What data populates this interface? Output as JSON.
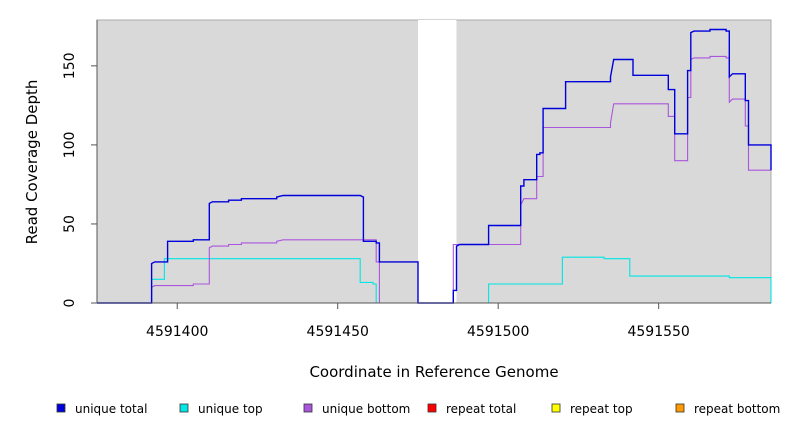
{
  "chart_data": {
    "type": "line",
    "title": "",
    "xlabel": "Coordinate in Reference Genome",
    "ylabel": "Read Coverage Depth",
    "xlim": [
      4591375,
      4591585
    ],
    "ylim": [
      0,
      179
    ],
    "x_ticks": [
      {
        "value": 4591400,
        "label": "4591400"
      },
      {
        "value": 4591450,
        "label": "4591450"
      },
      {
        "value": 4591500,
        "label": "4591500"
      },
      {
        "value": 4591550,
        "label": "4591550"
      }
    ],
    "y_ticks": [
      {
        "value": 0,
        "label": "0"
      },
      {
        "value": 50,
        "label": "50"
      },
      {
        "value": 100,
        "label": "100"
      },
      {
        "value": 150,
        "label": "150"
      }
    ],
    "grid": false,
    "background": "#d9d9d9",
    "gap_region": {
      "x_start": 4591475,
      "x_end": 4591487,
      "color": "#ffffff"
    },
    "legend_position": "bottom",
    "series": [
      {
        "name": "unique total",
        "color": "#0000dd",
        "step": true,
        "points": [
          [
            4591375,
            0
          ],
          [
            4591392,
            0
          ],
          [
            4591392,
            25
          ],
          [
            4591393,
            26
          ],
          [
            4591397,
            26
          ],
          [
            4591397,
            39
          ],
          [
            4591405,
            39
          ],
          [
            4591405,
            40
          ],
          [
            4591410,
            40
          ],
          [
            4591410,
            63
          ],
          [
            4591411,
            64
          ],
          [
            4591416,
            64
          ],
          [
            4591416,
            65
          ],
          [
            4591420,
            65
          ],
          [
            4591420,
            66
          ],
          [
            4591431,
            66
          ],
          [
            4591431,
            67
          ],
          [
            4591433,
            68
          ],
          [
            4591457,
            68
          ],
          [
            4591458,
            67
          ],
          [
            4591458,
            39
          ],
          [
            4591462,
            39
          ],
          [
            4591462,
            38
          ],
          [
            4591463,
            38
          ],
          [
            4591463,
            26
          ],
          [
            4591475,
            26
          ],
          [
            4591475,
            0
          ],
          [
            4591486,
            0
          ],
          [
            4591486,
            8
          ],
          [
            4591487,
            8
          ],
          [
            4591487,
            36
          ],
          [
            4591488,
            37
          ],
          [
            4591497,
            37
          ],
          [
            4591497,
            49
          ],
          [
            4591507,
            49
          ],
          [
            4591507,
            74
          ],
          [
            4591508,
            74
          ],
          [
            4591508,
            78
          ],
          [
            4591512,
            78
          ],
          [
            4591512,
            94
          ],
          [
            4591513,
            94
          ],
          [
            4591513,
            95
          ],
          [
            4591514,
            95
          ],
          [
            4591514,
            123
          ],
          [
            4591521,
            123
          ],
          [
            4591521,
            140
          ],
          [
            4591535,
            140
          ],
          [
            4591535,
            143
          ],
          [
            4591536,
            154
          ],
          [
            4591542,
            154
          ],
          [
            4591542,
            144
          ],
          [
            4591553,
            144
          ],
          [
            4591553,
            135
          ],
          [
            4591555,
            135
          ],
          [
            4591555,
            107
          ],
          [
            4591559,
            107
          ],
          [
            4591559,
            147
          ],
          [
            4591560,
            147
          ],
          [
            4591560,
            171
          ],
          [
            4591561,
            172
          ],
          [
            4591566,
            172
          ],
          [
            4591566,
            173
          ],
          [
            4591571,
            173
          ],
          [
            4591571,
            172
          ],
          [
            4591572,
            172
          ],
          [
            4591572,
            143
          ],
          [
            4591573,
            145
          ],
          [
            4591577,
            145
          ],
          [
            4591577,
            128
          ],
          [
            4591578,
            128
          ],
          [
            4591578,
            100
          ],
          [
            4591585,
            100
          ],
          [
            4591585,
            84
          ],
          [
            4591586,
            84
          ]
        ]
      },
      {
        "name": "unique top",
        "color": "#00e5e5",
        "step": true,
        "points": [
          [
            4591375,
            0
          ],
          [
            4591392,
            0
          ],
          [
            4591392,
            15
          ],
          [
            4591396,
            15
          ],
          [
            4591396,
            28
          ],
          [
            4591457,
            28
          ],
          [
            4591457,
            13
          ],
          [
            4591461,
            13
          ],
          [
            4591461,
            12
          ],
          [
            4591462,
            12
          ],
          [
            4591462,
            0
          ],
          [
            4591497,
            0
          ],
          [
            4591497,
            12
          ],
          [
            4591520,
            12
          ],
          [
            4591520,
            29
          ],
          [
            4591533,
            29
          ],
          [
            4591533,
            28
          ],
          [
            4591541,
            28
          ],
          [
            4591541,
            17
          ],
          [
            4591572,
            17
          ],
          [
            4591572,
            16
          ],
          [
            4591585,
            16
          ],
          [
            4591585,
            0
          ],
          [
            4591586,
            0
          ]
        ]
      },
      {
        "name": "unique bottom",
        "color": "#aa55dd",
        "step": true,
        "points": [
          [
            4591375,
            0
          ],
          [
            4591392,
            0
          ],
          [
            4591392,
            10
          ],
          [
            4591393,
            11
          ],
          [
            4591405,
            11
          ],
          [
            4591405,
            12
          ],
          [
            4591410,
            12
          ],
          [
            4591410,
            35
          ],
          [
            4591411,
            36
          ],
          [
            4591416,
            36
          ],
          [
            4591416,
            37
          ],
          [
            4591420,
            37
          ],
          [
            4591420,
            38
          ],
          [
            4591431,
            38
          ],
          [
            4591431,
            39
          ],
          [
            4591433,
            40
          ],
          [
            4591462,
            40
          ],
          [
            4591462,
            26
          ],
          [
            4591463,
            26
          ],
          [
            4591463,
            0
          ],
          [
            4591486,
            0
          ],
          [
            4591486,
            37
          ],
          [
            4591507,
            37
          ],
          [
            4591507,
            62
          ],
          [
            4591508,
            66
          ],
          [
            4591512,
            66
          ],
          [
            4591512,
            80
          ],
          [
            4591514,
            80
          ],
          [
            4591514,
            111
          ],
          [
            4591535,
            111
          ],
          [
            4591535,
            114
          ],
          [
            4591536,
            126
          ],
          [
            4591553,
            126
          ],
          [
            4591553,
            118
          ],
          [
            4591555,
            118
          ],
          [
            4591555,
            90
          ],
          [
            4591559,
            90
          ],
          [
            4591559,
            130
          ],
          [
            4591560,
            130
          ],
          [
            4591560,
            154
          ],
          [
            4591561,
            155
          ],
          [
            4591566,
            155
          ],
          [
            4591566,
            156
          ],
          [
            4591571,
            156
          ],
          [
            4591571,
            155
          ],
          [
            4591572,
            155
          ],
          [
            4591572,
            127
          ],
          [
            4591573,
            129
          ],
          [
            4591577,
            129
          ],
          [
            4591577,
            112
          ],
          [
            4591578,
            112
          ],
          [
            4591578,
            84
          ],
          [
            4591586,
            84
          ]
        ]
      },
      {
        "name": "repeat total",
        "color": "#ff0000",
        "step": true,
        "points": [
          [
            4591375,
            0
          ],
          [
            4591586,
            0
          ]
        ]
      },
      {
        "name": "repeat top",
        "color": "#ffff00",
        "step": true,
        "points": [
          [
            4591375,
            0
          ],
          [
            4591586,
            0
          ]
        ]
      },
      {
        "name": "repeat bottom",
        "color": "#ff9900",
        "step": true,
        "points": [
          [
            4591375,
            0
          ],
          [
            4591586,
            0
          ]
        ]
      }
    ]
  }
}
